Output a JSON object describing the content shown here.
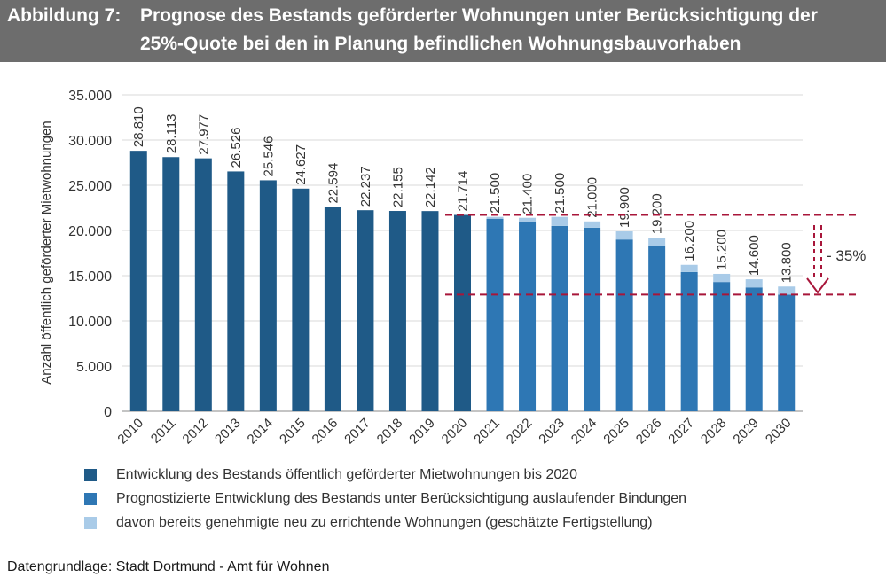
{
  "header": {
    "figure_label": "Abbildung 7:",
    "title_line1": "Prognose des Bestands geförderter Wohnungen unter Berücksichtigung der",
    "title_line2": "25%-Quote bei den in Planung befindlichen Wohnungsbauvorhaben"
  },
  "colors": {
    "header_bg": "#6d6d6d",
    "historic": "#1f5a87",
    "forecast": "#2e77b4",
    "approved": "#a9cbe8",
    "reference_line": "#a8163a"
  },
  "chart_data": {
    "type": "bar",
    "title": "",
    "xlabel": "",
    "ylabel": "Anzahl öffentlich geförderter Mietwohnungen",
    "ylim": [
      0,
      35000
    ],
    "yticks": [
      "0",
      "5.000",
      "10.000",
      "15.000",
      "20.000",
      "25.000",
      "30.000",
      "35.000"
    ],
    "grid": true,
    "categories": [
      "2010",
      "2011",
      "2012",
      "2013",
      "2014",
      "2015",
      "2016",
      "2017",
      "2018",
      "2019",
      "2020",
      "2021",
      "2022",
      "2023",
      "2024",
      "2025",
      "2026",
      "2027",
      "2028",
      "2029",
      "2030"
    ],
    "series": [
      {
        "name": "Entwicklung des Bestands öffentlich geförderter Mietwohnungen bis 2020",
        "values": [
          28810,
          28113,
          27977,
          26526,
          25546,
          24627,
          22594,
          22237,
          22155,
          22142,
          21714,
          null,
          null,
          null,
          null,
          null,
          null,
          null,
          null,
          null,
          null
        ]
      },
      {
        "name": "Prognostizierte Entwicklung des Bestands unter Berücksichtigung auslaufender Bindungen",
        "values": [
          null,
          null,
          null,
          null,
          null,
          null,
          null,
          null,
          null,
          null,
          null,
          21300,
          21000,
          20500,
          20300,
          19000,
          18300,
          15400,
          14300,
          13700,
          12900
        ]
      },
      {
        "name": "davon bereits genehmigte neu zu errichtende Wohnungen (geschätzte Fertigstellung)",
        "values": [
          null,
          null,
          null,
          null,
          null,
          null,
          null,
          null,
          null,
          null,
          null,
          200,
          400,
          1000,
          700,
          900,
          900,
          800,
          900,
          900,
          900
        ]
      }
    ],
    "data_labels": [
      "28.810",
      "28.113",
      "27.977",
      "26.526",
      "25.546",
      "24.627",
      "22.594",
      "22.237",
      "22.155",
      "22.142",
      "21.714",
      "21.500",
      "21.400",
      "21.500",
      "21.000",
      "19.900",
      "19.200",
      "16.200",
      "15.200",
      "14.600",
      "13.800"
    ],
    "reference_lines": [
      21714,
      12900
    ],
    "annotation": "- 35%",
    "legend_position": "bottom"
  },
  "legend": [
    {
      "label": "Entwicklung des Bestands öffentlich geförderter Mietwohnungen bis 2020",
      "color": "#1f5a87"
    },
    {
      "label": "Prognostizierte Entwicklung des Bestands unter Berücksichtigung auslaufender Bindungen",
      "color": "#2e77b4"
    },
    {
      "label": "davon bereits genehmigte neu zu errichtende Wohnungen (geschätzte Fertigstellung)",
      "color": "#a9cbe8"
    }
  ],
  "source": "Datengrundlage: Stadt Dortmund - Amt für Wohnen"
}
